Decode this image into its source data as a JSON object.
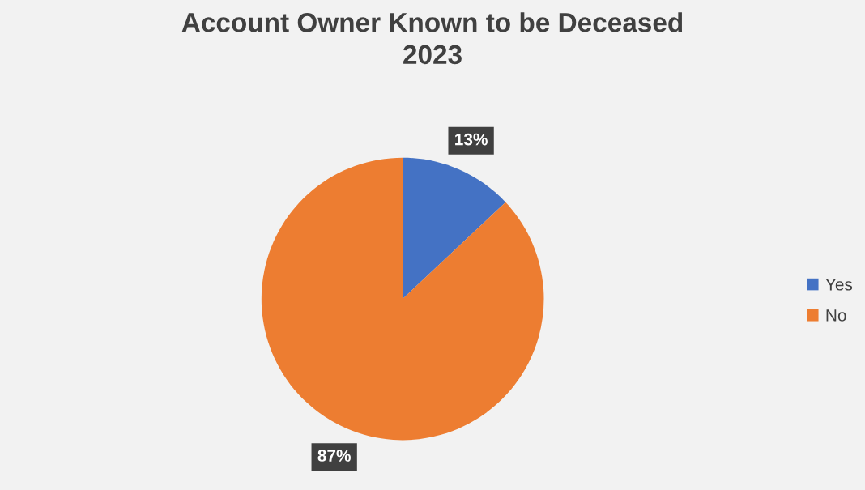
{
  "chart_data": {
    "type": "pie",
    "title": "Account Owner Known to be Deceased\n2023",
    "categories": [
      "Yes",
      "No"
    ],
    "values": [
      13,
      87
    ],
    "colors": [
      "#4472c4",
      "#ed7d31"
    ],
    "value_labels": [
      "13%",
      "87%"
    ],
    "legend": "right"
  }
}
